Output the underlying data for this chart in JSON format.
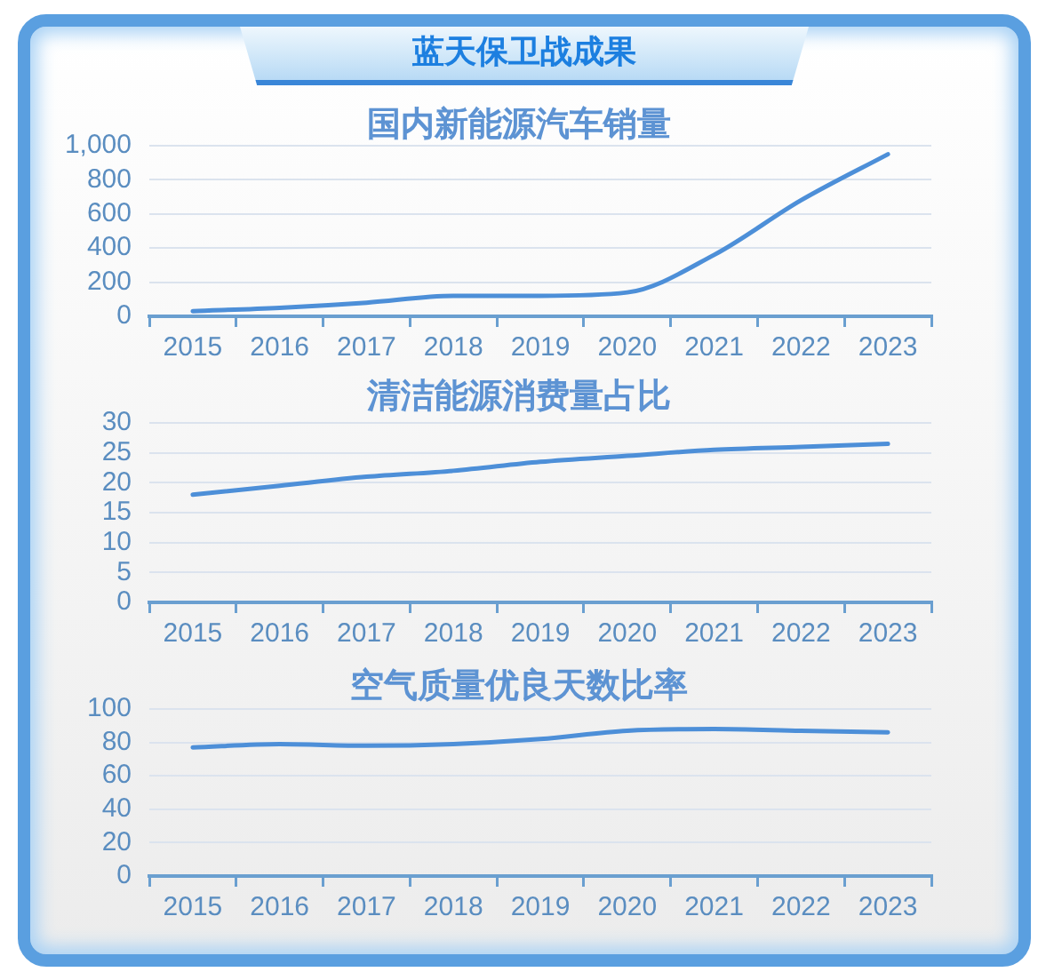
{
  "chart_data": [
    {
      "type": "line",
      "title": "蓝天保卫战成果",
      "subtitle": "国内新能源汽车销量",
      "categories": [
        "2015",
        "2016",
        "2017",
        "2018",
        "2019",
        "2020",
        "2021",
        "2022",
        "2023"
      ],
      "values": [
        30,
        50,
        80,
        120,
        120,
        140,
        360,
        680,
        950
      ],
      "color": "#4d8fd8",
      "ylim": [
        0,
        1000
      ],
      "yticks": [
        0,
        200,
        400,
        600,
        800,
        {
          "value": 1000,
          "label": "1,000"
        }
      ],
      "grid": "y",
      "marker": "none"
    },
    {
      "type": "line",
      "title": "清洁能源消费量占比",
      "categories": [
        "2015",
        "2016",
        "2017",
        "2018",
        "2019",
        "2020",
        "2021",
        "2022",
        "2023"
      ],
      "values": [
        18,
        19.5,
        21,
        22,
        23.5,
        24.5,
        25.5,
        26,
        26.5
      ],
      "color": "#4d8fd8",
      "ylim": [
        0,
        30
      ],
      "yticks": [
        0,
        5,
        10,
        15,
        20,
        25,
        30
      ],
      "grid": "y",
      "marker": "none"
    },
    {
      "type": "line",
      "title": "空气质量优良天数比率",
      "categories": [
        "2015",
        "2016",
        "2017",
        "2018",
        "2019",
        "2020",
        "2021",
        "2022",
        "2023"
      ],
      "values": [
        77,
        79,
        78,
        79,
        82,
        87,
        88,
        87,
        86
      ],
      "color": "#4d8fd8",
      "ylim": [
        0,
        100
      ],
      "yticks": [
        0,
        20,
        40,
        60,
        80,
        100
      ],
      "grid": "y",
      "marker": "none"
    }
  ]
}
